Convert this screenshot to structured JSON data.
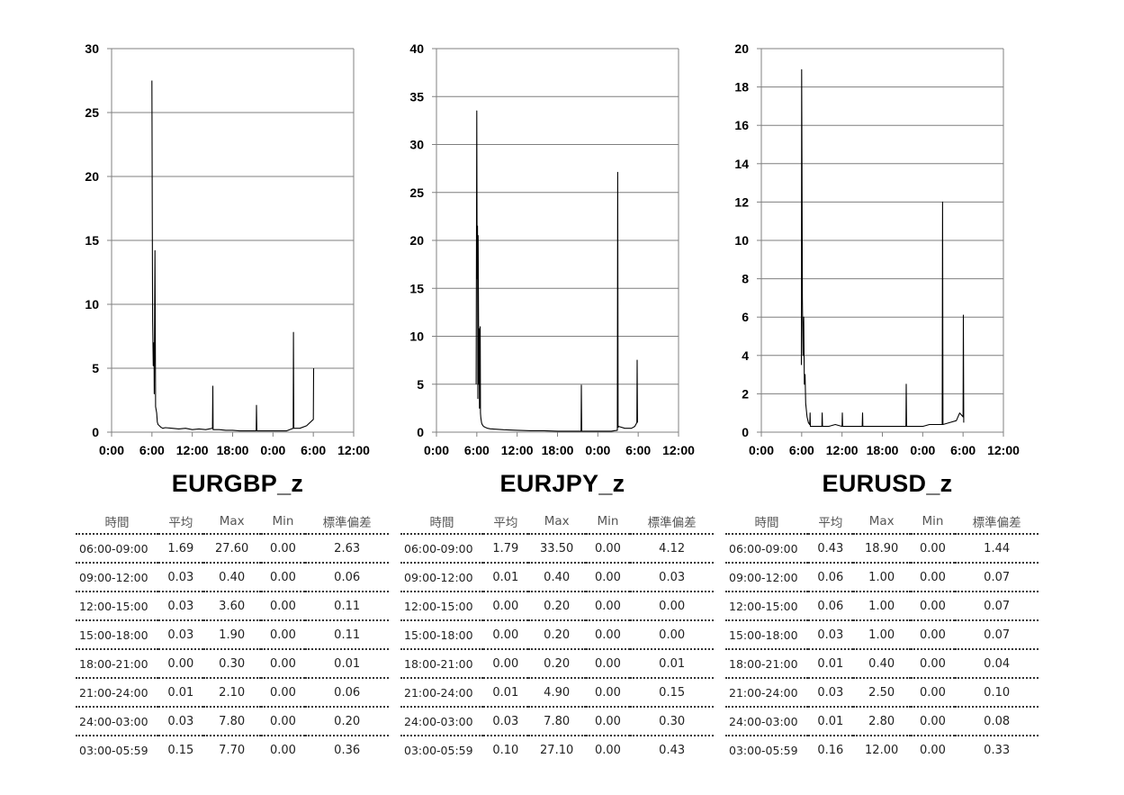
{
  "table_headers": [
    "時間",
    "平均",
    "Max",
    "Min",
    "標準偏差"
  ],
  "x_tick_labels": [
    "0:00",
    "6:00",
    "12:00",
    "18:00",
    "0:00",
    "6:00",
    "12:00"
  ],
  "line_color": "#000000",
  "grid_color": "#7f7f7f",
  "chart_data": [
    {
      "type": "line",
      "title": "EURGBP_z",
      "ylim": [
        0,
        30
      ],
      "y_ticks": [
        0,
        5,
        10,
        15,
        20,
        25,
        30
      ],
      "xlim_hours": [
        0,
        36
      ],
      "grid": true,
      "series": [
        {
          "x": [
            6.0,
            6.05,
            6.1,
            6.2,
            6.3,
            6.35,
            6.45,
            6.55,
            6.7,
            6.8,
            6.9,
            7.1,
            7.3,
            7.6,
            8.0,
            9.0,
            10.0,
            11.0,
            12.0,
            13.0,
            14.0,
            15.0,
            15.05,
            15.1,
            16.0,
            17.0,
            18.0,
            19.0,
            21.0,
            21.5,
            21.55,
            21.6,
            22.0,
            23.0,
            24.0,
            25.0,
            26.0,
            27.0,
            27.05,
            27.1,
            28.0,
            29.0,
            30.0,
            30.05
          ],
          "y": [
            27.5,
            17.5,
            8.7,
            5.2,
            7.0,
            3.0,
            14.2,
            2.0,
            1.5,
            0.8,
            0.6,
            0.5,
            0.4,
            0.3,
            0.35,
            0.3,
            0.25,
            0.3,
            0.2,
            0.25,
            0.2,
            0.3,
            3.6,
            0.2,
            0.2,
            0.15,
            0.15,
            0.1,
            0.1,
            0.1,
            2.1,
            0.1,
            0.1,
            0.1,
            0.1,
            0.1,
            0.1,
            0.3,
            7.8,
            0.3,
            0.3,
            0.5,
            1.0,
            5.0
          ]
        }
      ],
      "stats": [
        [
          "06:00-09:00",
          "1.69",
          "27.60",
          "0.00",
          "2.63"
        ],
        [
          "09:00-12:00",
          "0.03",
          "0.40",
          "0.00",
          "0.06"
        ],
        [
          "12:00-15:00",
          "0.03",
          "3.60",
          "0.00",
          "0.11"
        ],
        [
          "15:00-18:00",
          "0.03",
          "1.90",
          "0.00",
          "0.11"
        ],
        [
          "18:00-21:00",
          "0.00",
          "0.30",
          "0.00",
          "0.01"
        ],
        [
          "21:00-24:00",
          "0.01",
          "2.10",
          "0.00",
          "0.06"
        ],
        [
          "24:00-03:00",
          "0.03",
          "7.80",
          "0.00",
          "0.20"
        ],
        [
          "03:00-05:59",
          "0.15",
          "7.70",
          "0.00",
          "0.36"
        ]
      ]
    },
    {
      "type": "line",
      "title": "EURJPY_z",
      "ylim": [
        0,
        40
      ],
      "y_ticks": [
        0,
        5,
        10,
        15,
        20,
        25,
        30,
        35,
        40
      ],
      "xlim_hours": [
        0,
        36
      ],
      "grid": true,
      "series": [
        {
          "x": [
            5.9,
            6.0,
            6.05,
            6.1,
            6.15,
            6.2,
            6.3,
            6.35,
            6.4,
            6.5,
            6.55,
            6.6,
            6.7,
            6.8,
            7.0,
            7.3,
            7.6,
            8.0,
            9.0,
            10.0,
            12.0,
            14.0,
            16.0,
            18.0,
            20.0,
            21.5,
            21.55,
            21.6,
            23.0,
            26.0,
            26.9,
            26.95,
            27.0,
            27.1,
            28.0,
            29.0,
            29.5,
            29.8,
            29.85,
            29.9
          ],
          "y": [
            5.0,
            33.5,
            16.0,
            21.5,
            3.5,
            20.5,
            5.0,
            10.8,
            2.5,
            11.0,
            2.0,
            1.5,
            1.0,
            0.8,
            0.6,
            0.5,
            0.4,
            0.35,
            0.3,
            0.25,
            0.2,
            0.15,
            0.15,
            0.1,
            0.1,
            0.1,
            4.9,
            0.1,
            0.1,
            0.1,
            0.2,
            27.1,
            0.5,
            0.6,
            0.4,
            0.4,
            0.6,
            1.0,
            7.5,
            1.0
          ]
        }
      ],
      "stats": [
        [
          "06:00-09:00",
          "1.79",
          "33.50",
          "0.00",
          "4.12"
        ],
        [
          "09:00-12:00",
          "0.01",
          "0.40",
          "0.00",
          "0.03"
        ],
        [
          "12:00-15:00",
          "0.00",
          "0.20",
          "0.00",
          "0.00"
        ],
        [
          "15:00-18:00",
          "0.00",
          "0.20",
          "0.00",
          "0.00"
        ],
        [
          "18:00-21:00",
          "0.00",
          "0.20",
          "0.00",
          "0.01"
        ],
        [
          "21:00-24:00",
          "0.01",
          "4.90",
          "0.00",
          "0.15"
        ],
        [
          "24:00-03:00",
          "0.03",
          "7.80",
          "0.00",
          "0.30"
        ],
        [
          "03:00-05:59",
          "0.10",
          "27.10",
          "0.00",
          "0.43"
        ]
      ]
    },
    {
      "type": "line",
      "title": "EURUSD_z",
      "ylim": [
        0,
        20
      ],
      "y_ticks": [
        0,
        2,
        4,
        6,
        8,
        10,
        12,
        14,
        16,
        18,
        20
      ],
      "xlim_hours": [
        0,
        36
      ],
      "grid": true,
      "series": [
        {
          "x": [
            5.95,
            6.0,
            6.05,
            6.1,
            6.2,
            6.3,
            6.4,
            6.5,
            6.6,
            6.8,
            7.0,
            7.2,
            7.25,
            7.3,
            8.0,
            9.0,
            9.05,
            9.1,
            10.0,
            11.0,
            12.0,
            12.05,
            12.1,
            14.0,
            15.0,
            15.05,
            15.1,
            17.0,
            21.5,
            21.55,
            21.6,
            23.0,
            24.0,
            25.0,
            26.0,
            26.9,
            26.95,
            27.0,
            28.0,
            29.0,
            29.5,
            30.0,
            30.05,
            30.1
          ],
          "y": [
            3.5,
            18.9,
            13.5,
            7.0,
            4.0,
            6.0,
            2.5,
            3.0,
            1.5,
            0.8,
            0.5,
            0.4,
            1.0,
            0.3,
            0.3,
            0.3,
            1.0,
            0.3,
            0.3,
            0.4,
            0.3,
            1.0,
            0.3,
            0.3,
            0.3,
            1.0,
            0.3,
            0.3,
            0.3,
            2.5,
            0.3,
            0.3,
            0.3,
            0.4,
            0.4,
            0.4,
            12.0,
            0.4,
            0.5,
            0.6,
            1.0,
            0.8,
            6.1,
            0.5
          ]
        }
      ],
      "stats": [
        [
          "06:00-09:00",
          "0.43",
          "18.90",
          "0.00",
          "1.44"
        ],
        [
          "09:00-12:00",
          "0.06",
          "1.00",
          "0.00",
          "0.07"
        ],
        [
          "12:00-15:00",
          "0.06",
          "1.00",
          "0.00",
          "0.07"
        ],
        [
          "15:00-18:00",
          "0.03",
          "1.00",
          "0.00",
          "0.07"
        ],
        [
          "18:00-21:00",
          "0.01",
          "0.40",
          "0.00",
          "0.04"
        ],
        [
          "21:00-24:00",
          "0.03",
          "2.50",
          "0.00",
          "0.10"
        ],
        [
          "24:00-03:00",
          "0.01",
          "2.80",
          "0.00",
          "0.08"
        ],
        [
          "03:00-05:59",
          "0.16",
          "12.00",
          "0.00",
          "0.33"
        ]
      ]
    }
  ]
}
